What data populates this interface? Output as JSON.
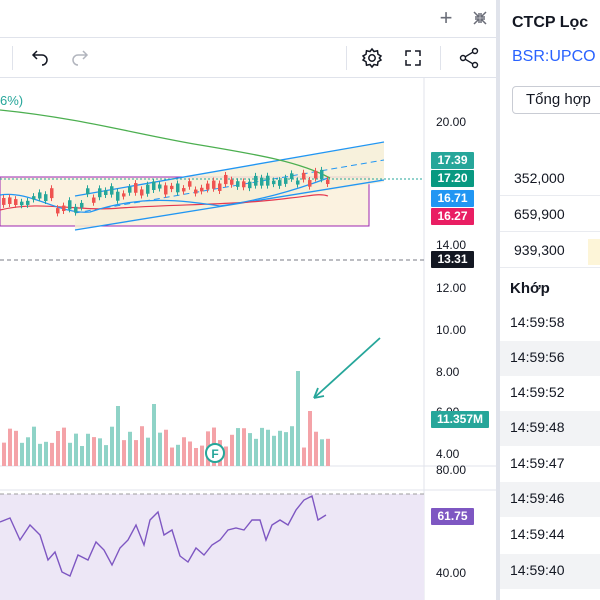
{
  "window": {
    "add_icon": "+",
    "collapse_icon": "collapse-arrows"
  },
  "toolbar": {
    "undo": "undo-icon",
    "redo": "redo-icon",
    "settings": "gear-icon",
    "fullscreen": "fullscreen-icon",
    "share": "share-icon"
  },
  "indicator_label": "6%)",
  "price_axis": [
    "20.00",
    "14.00",
    "12.00",
    "10.00",
    "8.00",
    "6.00",
    "4.00"
  ],
  "rsi_axis": [
    "80.00",
    "40.00"
  ],
  "price_tags": [
    {
      "label": "17.39",
      "color": "#26a69a"
    },
    {
      "label": "17.20",
      "color": "#089981"
    },
    {
      "label": "16.71",
      "color": "#2196f3"
    },
    {
      "label": "16.27",
      "color": "#e91e63"
    },
    {
      "label": "13.31",
      "color": "#131722"
    },
    {
      "label": "11.357M",
      "color": "#26a69a"
    },
    {
      "label": "61.75",
      "color": "#7e57c2"
    }
  ],
  "marker": "F",
  "company": {
    "name": "CTCP Lọc",
    "ticker": "BSR:UPCO",
    "summary_button": "Tổng hợp"
  },
  "volumes": [
    "352,000",
    "659,900",
    "939,300"
  ],
  "match": {
    "header": "Khớp",
    "times": [
      "14:59:58",
      "14:59:56",
      "14:59:52",
      "14:59:48",
      "14:59:47",
      "14:59:46",
      "14:59:44",
      "14:59:40"
    ]
  },
  "colors": {
    "up": "#26a69a",
    "down": "#ef5350",
    "accent": "#2962ff",
    "rsi": "#7e57c2"
  }
}
